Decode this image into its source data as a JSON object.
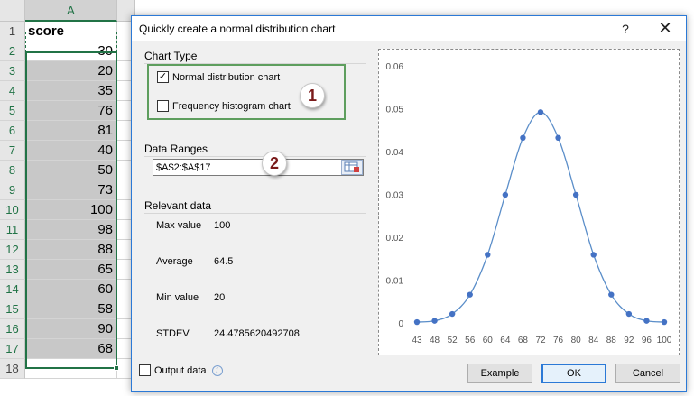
{
  "sheet": {
    "column_header": "A",
    "rows": [
      {
        "num": "1",
        "value": "score"
      },
      {
        "num": "2",
        "value": "30"
      },
      {
        "num": "3",
        "value": "20"
      },
      {
        "num": "4",
        "value": "35"
      },
      {
        "num": "5",
        "value": "76"
      },
      {
        "num": "6",
        "value": "81"
      },
      {
        "num": "7",
        "value": "40"
      },
      {
        "num": "8",
        "value": "50"
      },
      {
        "num": "9",
        "value": "73"
      },
      {
        "num": "10",
        "value": "100"
      },
      {
        "num": "11",
        "value": "98"
      },
      {
        "num": "12",
        "value": "88"
      },
      {
        "num": "13",
        "value": "65"
      },
      {
        "num": "14",
        "value": "60"
      },
      {
        "num": "15",
        "value": "58"
      },
      {
        "num": "16",
        "value": "90"
      },
      {
        "num": "17",
        "value": "68"
      },
      {
        "num": "18",
        "value": ""
      }
    ]
  },
  "dialog": {
    "title": "Quickly create a normal distribution chart",
    "help_label": "?",
    "close_label": "✕",
    "chart_type": {
      "label": "Chart Type",
      "normal_label": "Normal distribution chart",
      "normal_checked": true,
      "histogram_label": "Frequency histogram chart",
      "histogram_checked": false,
      "badge": "1"
    },
    "data_ranges": {
      "label": "Data Ranges",
      "value": "$A$2:$A$17",
      "badge": "2"
    },
    "relevant": {
      "label": "Relevant data",
      "stats": [
        {
          "label": "Max value",
          "value": "100"
        },
        {
          "label": "Average",
          "value": "64.5"
        },
        {
          "label": "Min value",
          "value": "20"
        },
        {
          "label": "STDEV",
          "value": "24.4785620492708"
        }
      ]
    },
    "output_label": "Output data",
    "buttons": {
      "example": "Example",
      "ok": "OK",
      "cancel": "Cancel"
    }
  },
  "chart_data": {
    "type": "line",
    "x": [
      "43",
      "48",
      "52",
      "56",
      "60",
      "64",
      "68",
      "72",
      "76",
      "80",
      "84",
      "88",
      "92",
      "96",
      "100"
    ],
    "series": [
      {
        "values": [
          0.0002,
          0.0005,
          0.0021,
          0.0066,
          0.0159,
          0.0299,
          0.0432,
          0.0492,
          0.0432,
          0.0299,
          0.0159,
          0.0066,
          0.0021,
          0.0005,
          0.0002
        ]
      }
    ],
    "y_ticks": [
      "0",
      "0.01",
      "0.02",
      "0.03",
      "0.04",
      "0.05",
      "0.06"
    ],
    "ylim": [
      0,
      0.06
    ],
    "line_color": "#5b8ec9",
    "marker_color": "#4472c4",
    "grid": false,
    "legend": "none"
  }
}
